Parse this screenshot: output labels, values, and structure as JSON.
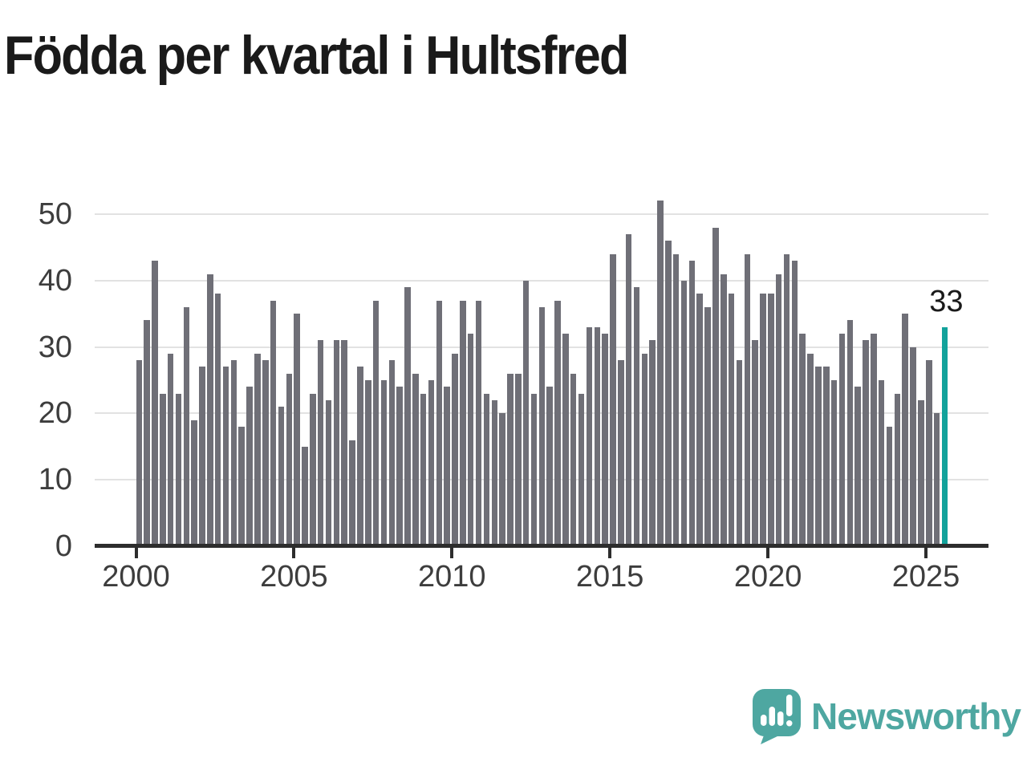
{
  "title": "Födda per kvartal i Hultsfred",
  "annotation": {
    "label": "33"
  },
  "branding": {
    "name": "Newsworthy",
    "logo_icon": "bar-chart-speech-bubble-icon"
  },
  "colors": {
    "bar": "#6f6f77",
    "highlight": "#12a29b",
    "grid": "#e2e2e2",
    "axis": "#2d2d2d",
    "title_text": "#1a1a1a",
    "tick_text": "#3d3d3d",
    "brand": "#4ea7a1"
  },
  "chart_data": {
    "type": "bar",
    "title": "Födda per kvartal i Hultsfred",
    "x_period": "quarterly",
    "x_start": "2000 Q1",
    "x_end": "2025 Q3",
    "categories": [
      "2000 Q1",
      "2000 Q2",
      "2000 Q3",
      "2000 Q4",
      "2001 Q1",
      "2001 Q2",
      "2001 Q3",
      "2001 Q4",
      "2002 Q1",
      "2002 Q2",
      "2002 Q3",
      "2002 Q4",
      "2003 Q1",
      "2003 Q2",
      "2003 Q3",
      "2003 Q4",
      "2004 Q1",
      "2004 Q2",
      "2004 Q3",
      "2004 Q4",
      "2005 Q1",
      "2005 Q2",
      "2005 Q3",
      "2005 Q4",
      "2006 Q1",
      "2006 Q2",
      "2006 Q3",
      "2006 Q4",
      "2007 Q1",
      "2007 Q2",
      "2007 Q3",
      "2007 Q4",
      "2008 Q1",
      "2008 Q2",
      "2008 Q3",
      "2008 Q4",
      "2009 Q1",
      "2009 Q2",
      "2009 Q3",
      "2009 Q4",
      "2010 Q1",
      "2010 Q2",
      "2010 Q3",
      "2010 Q4",
      "2011 Q1",
      "2011 Q2",
      "2011 Q3",
      "2011 Q4",
      "2012 Q1",
      "2012 Q2",
      "2012 Q3",
      "2012 Q4",
      "2013 Q1",
      "2013 Q2",
      "2013 Q3",
      "2013 Q4",
      "2014 Q1",
      "2014 Q2",
      "2014 Q3",
      "2014 Q4",
      "2015 Q1",
      "2015 Q2",
      "2015 Q3",
      "2015 Q4",
      "2016 Q1",
      "2016 Q2",
      "2016 Q3",
      "2016 Q4",
      "2017 Q1",
      "2017 Q2",
      "2017 Q3",
      "2017 Q4",
      "2018 Q1",
      "2018 Q2",
      "2018 Q3",
      "2018 Q4",
      "2019 Q1",
      "2019 Q2",
      "2019 Q3",
      "2019 Q4",
      "2020 Q1",
      "2020 Q2",
      "2020 Q3",
      "2020 Q4",
      "2021 Q1",
      "2021 Q2",
      "2021 Q3",
      "2021 Q4",
      "2022 Q1",
      "2022 Q2",
      "2022 Q3",
      "2022 Q4",
      "2023 Q1",
      "2023 Q2",
      "2023 Q3",
      "2023 Q4",
      "2024 Q1",
      "2024 Q2",
      "2024 Q3",
      "2024 Q4",
      "2025 Q1",
      "2025 Q2",
      "2025 Q3"
    ],
    "values": [
      28,
      34,
      43,
      23,
      29,
      23,
      36,
      19,
      27,
      41,
      38,
      27,
      28,
      18,
      24,
      29,
      28,
      37,
      21,
      26,
      35,
      15,
      23,
      31,
      22,
      31,
      31,
      16,
      27,
      25,
      37,
      25,
      28,
      24,
      39,
      26,
      23,
      25,
      37,
      24,
      29,
      37,
      32,
      37,
      23,
      22,
      20,
      26,
      26,
      40,
      23,
      36,
      24,
      37,
      32,
      26,
      23,
      33,
      33,
      32,
      44,
      28,
      47,
      39,
      29,
      31,
      52,
      46,
      44,
      40,
      43,
      38,
      36,
      48,
      41,
      38,
      28,
      44,
      31,
      38,
      38,
      41,
      44,
      43,
      32,
      29,
      27,
      27,
      25,
      32,
      34,
      24,
      31,
      32,
      25,
      18,
      23,
      35,
      30,
      22,
      28,
      20,
      33
    ],
    "highlight_index": 102,
    "highlight_value_label": "33",
    "xticks": [
      "2000",
      "2005",
      "2010",
      "2015",
      "2020",
      "2025"
    ],
    "yticks": [
      0,
      10,
      20,
      30,
      40,
      50
    ],
    "ylim": [
      0,
      52
    ],
    "grid": "horizontal",
    "legend": "none"
  }
}
